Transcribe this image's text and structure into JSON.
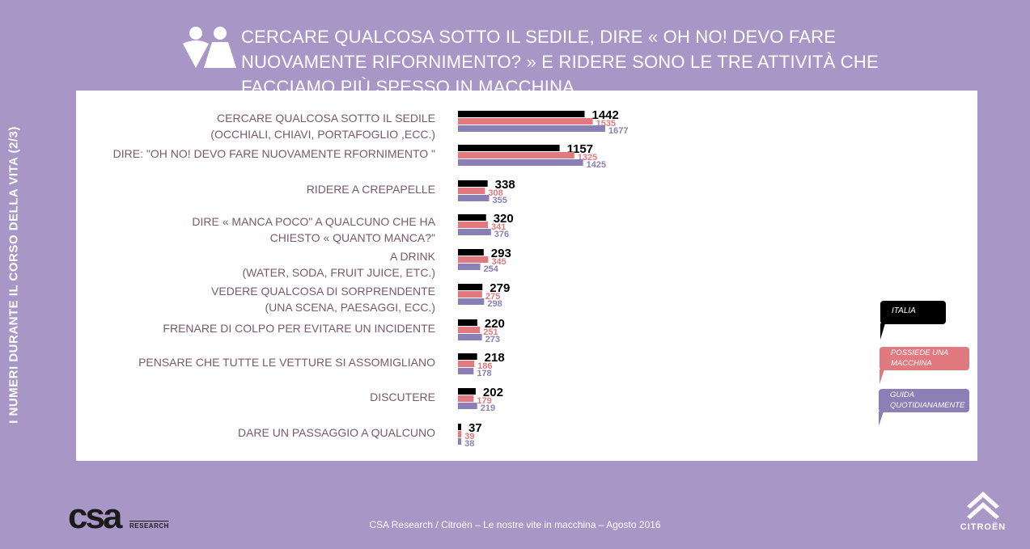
{
  "side_title": "I NUMERI DURANTE IL CORSO DELLA VITA  (2/3)",
  "headline": "CERCARE QUALCOSA SOTTO IL SEDILE, DIRE « OH NO! DEVO FARE NUOVAMENTE RIFORNIMENTO? » E RIDERE SONO LE TRE ATTIVITÀ CHE FACCIAMO PIÙ SPESSO IN MACCHINA",
  "footer": "CSA Research / Citroën –  Le nostre vite in macchina – Agosto 2016",
  "logos": {
    "csa": "csa",
    "csa_sub": "RESEARCH",
    "citroen": "CITROËN"
  },
  "icons": [
    "people-icon",
    "citroen-chevrons-icon"
  ],
  "colors": {
    "background": "#a897c6",
    "italia": "#000000",
    "possiede": "#e07a7f",
    "guida": "#8b80b5"
  },
  "chart_data": {
    "type": "bar",
    "orientation": "horizontal",
    "categories": [
      [
        "CERCARE QUALCOSA SOTTO IL SEDILE",
        "(OCCHIALI, CHIAVI, PORTAFOGLIO ,ECC.)"
      ],
      [
        "DIRE: \"OH NO! DEVO FARE NUOVAMENTE RFORNIMENTO \""
      ],
      [
        "RIDERE A CREPAPELLE"
      ],
      [
        "DIRE  « MANCA POCO\"  A QUALCUNO CHE HA",
        "CHIESTO « QUANTO MANCA?\""
      ],
      [
        "A DRINK",
        "(WATER, SODA, FRUIT JUICE, ETC.)"
      ],
      [
        "VEDERE QUALCOSA DI SORPRENDENTE",
        "(UNA SCENA, PAESAGGI, ECC.)"
      ],
      [
        "FRENARE DI COLPO PER EVITARE UN INCIDENTE"
      ],
      [
        "PENSARE CHE TUTTE LE VETTURE SI ASSOMIGLIANO"
      ],
      [
        "DISCUTERE"
      ],
      [
        "DARE UN PASSAGGIO A QUALCUNO"
      ]
    ],
    "series": [
      {
        "name": "ITALIA",
        "color": "#000000",
        "values": [
          1442,
          1157,
          338,
          320,
          293,
          279,
          220,
          218,
          202,
          37
        ]
      },
      {
        "name": "POSSIEDE UNA MACCHINA",
        "color": "#e07a7f",
        "values": [
          1535,
          1325,
          308,
          341,
          345,
          275,
          251,
          186,
          179,
          39
        ]
      },
      {
        "name": "GUIDA QUOTIDIANAMENTE",
        "color": "#8b80b5",
        "values": [
          1677,
          1425,
          355,
          376,
          254,
          298,
          273,
          178,
          219,
          38
        ]
      }
    ],
    "legend_position": "right",
    "grid": false,
    "xlim": [
      0,
      1700
    ]
  }
}
